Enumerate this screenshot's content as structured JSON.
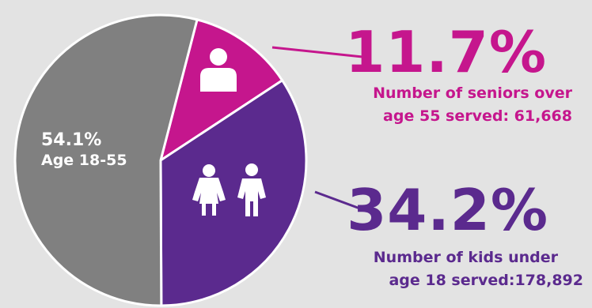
{
  "chart_data": {
    "type": "pie",
    "title": "",
    "slices": [
      {
        "label": "Number of seniors over age 55 served: 61,668",
        "value": 11.7,
        "color": "#c5168d"
      },
      {
        "label": "Number of kids under age 18 served:178,892",
        "value": 34.2,
        "color": "#5b2a8e"
      },
      {
        "label": "Age 18-55",
        "value": 54.1,
        "color": "#808080"
      }
    ]
  },
  "labels": {
    "seniors": {
      "pct": "11.7%",
      "line1": "Number of seniors over",
      "line2": "age 55 served: 61,668",
      "icon": "person-icon"
    },
    "kids": {
      "pct": "34.2%",
      "line1": "Number of kids under",
      "line2": "age 18 served:178,892",
      "icon": "children-icon"
    },
    "adults": {
      "pct": "54.1%",
      "sub": "Age 18-55"
    }
  },
  "colors": {
    "seniors": "#c5168d",
    "kids": "#5b2a8e",
    "adults": "#808080",
    "background": "#e3e3e3"
  }
}
